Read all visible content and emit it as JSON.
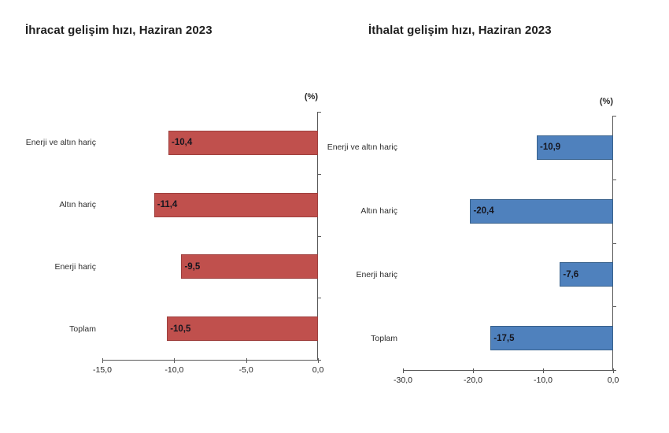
{
  "page": {
    "background": "#ffffff"
  },
  "chart_data": [
    {
      "type": "bar",
      "orientation": "horizontal",
      "title": "İhracat gelişim hızı, Haziran 2023",
      "unit_label": "(%)",
      "categories": [
        "Enerji ve altın hariç",
        "Altın hariç",
        "Enerji hariç",
        "Toplam"
      ],
      "values": [
        -10.4,
        -11.4,
        -9.5,
        -10.5
      ],
      "value_labels": [
        "-10,4",
        "-11,4",
        "-9,5",
        "-10,5"
      ],
      "xlim": [
        -15,
        0
      ],
      "x_ticks": [
        -15,
        -10,
        -5,
        0
      ],
      "x_tick_labels": [
        "-15,0",
        "-10,0",
        "-5,0",
        "0,0"
      ],
      "bar_color": "#C0504D",
      "bar_border_color": "#9E403E",
      "axis_color": "#595959",
      "grid": false,
      "legend": "none"
    },
    {
      "type": "bar",
      "orientation": "horizontal",
      "title": "İthalat gelişim hızı, Haziran 2023",
      "unit_label": "(%)",
      "categories": [
        "Enerji ve altın hariç",
        "Altın hariç",
        "Enerji hariç",
        "Toplam"
      ],
      "values": [
        -10.9,
        -20.4,
        -7.6,
        -17.5
      ],
      "value_labels": [
        "-10,9",
        "-20,4",
        "-7,6",
        "-17,5"
      ],
      "xlim": [
        -30,
        0
      ],
      "x_ticks": [
        -30,
        -20,
        -10,
        0
      ],
      "x_tick_labels": [
        "-30,0",
        "-20,0",
        "-10,0",
        "0,0"
      ],
      "bar_color": "#4F81BD",
      "bar_border_color": "#38618C",
      "axis_color": "#595959",
      "grid": false,
      "legend": "none"
    }
  ]
}
